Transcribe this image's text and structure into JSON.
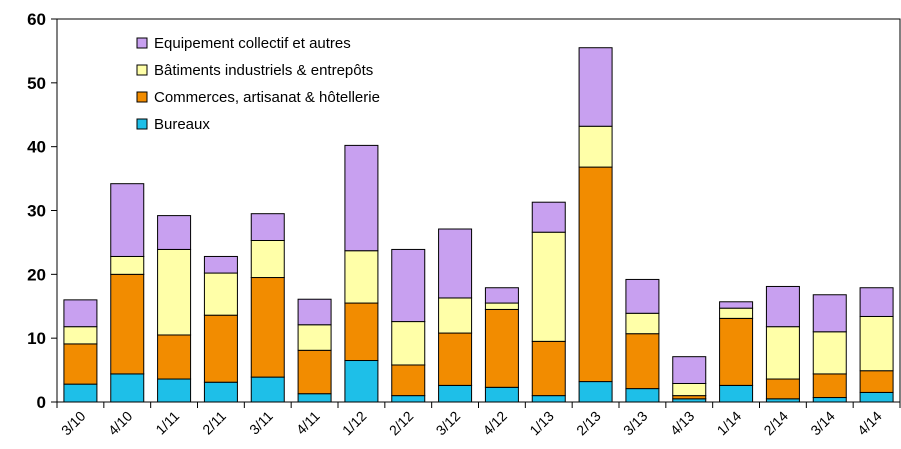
{
  "chart_data": {
    "type": "bar",
    "stacked": true,
    "categories": [
      "3/10",
      "4/10",
      "1/11",
      "2/11",
      "3/11",
      "4/11",
      "1/12",
      "2/12",
      "3/12",
      "4/12",
      "1/13",
      "2/13",
      "3/13",
      "4/13",
      "1/14",
      "2/14",
      "3/14",
      "4/14"
    ],
    "series": [
      {
        "name": "Bureaux",
        "color": "#1EBFE8",
        "values": [
          2.8,
          4.4,
          3.6,
          3.1,
          3.9,
          1.3,
          6.5,
          1.0,
          2.6,
          2.3,
          1.0,
          3.2,
          2.1,
          0.5,
          2.6,
          0.5,
          0.7,
          1.5
        ]
      },
      {
        "name": "Commerces, artisanat & hôtellerie",
        "color": "#F28C00",
        "values": [
          6.3,
          15.6,
          6.9,
          10.5,
          15.6,
          6.8,
          9.0,
          4.8,
          8.2,
          12.2,
          8.5,
          33.6,
          8.6,
          0.5,
          10.5,
          3.1,
          3.7,
          3.4
        ]
      },
      {
        "name": "Bâtiments  industriels & entrepôts",
        "color": "#FFFFA8",
        "values": [
          2.7,
          2.8,
          13.4,
          6.6,
          5.8,
          4.0,
          8.2,
          6.8,
          5.5,
          1.0,
          17.1,
          6.4,
          3.2,
          1.9,
          1.6,
          8.2,
          6.6,
          8.5
        ]
      },
      {
        "name": "Equipement collectif et autres",
        "color": "#C8A0F0",
        "values": [
          4.2,
          11.4,
          5.3,
          2.6,
          4.2,
          4.0,
          16.5,
          11.3,
          10.8,
          2.4,
          4.7,
          12.3,
          5.3,
          4.2,
          1.0,
          6.3,
          5.8,
          4.5
        ]
      }
    ],
    "legend_order": [
      "Equipement collectif et autres",
      "Bâtiments  industriels & entrepôts",
      "Commerces, artisanat & hôtellerie",
      "Bureaux"
    ],
    "yticks": [
      "0",
      "10",
      "20",
      "30",
      "40",
      "50",
      "60"
    ],
    "ylim": [
      0,
      60
    ],
    "legend_position": "top-left",
    "grid": false
  }
}
